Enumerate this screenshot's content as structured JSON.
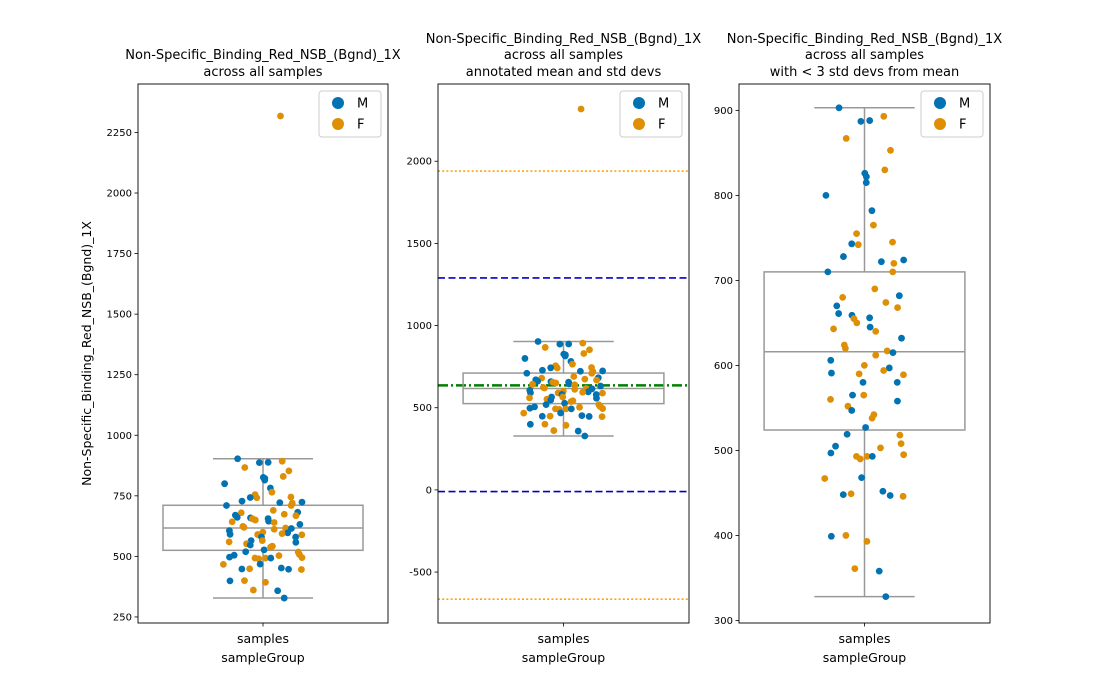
{
  "colors": {
    "M": "#0173b2",
    "F": "#de8f05",
    "box": "#999999",
    "mean_line": "#008000",
    "std1_line": "#0000cd",
    "std3_line": "#ffa500"
  },
  "chart_data": [
    {
      "type": "box",
      "title": [
        "Non-Specific_Binding_Red_NSB_(Bgnd)_1X",
        "across all samples"
      ],
      "xlabel": "sampleGroup",
      "ylabel": "Non-Specific_Binding_Red_NSB_(Bgnd)_1X",
      "categories": [
        "samples"
      ],
      "ylim": [
        225,
        2450
      ],
      "yticks": [
        250,
        500,
        750,
        1000,
        1250,
        1500,
        1750,
        2000,
        2250
      ],
      "box": {
        "min": 328,
        "q1": 525,
        "median": 617,
        "q3": 711,
        "max": 903
      },
      "outliers": [
        {
          "value": 2318,
          "group": "F"
        }
      ],
      "legend": {
        "position": "top-right",
        "entries": [
          "M",
          "F"
        ]
      },
      "hlines": []
    },
    {
      "type": "box",
      "title": [
        "Non-Specific_Binding_Red_NSB_(Bgnd)_1X",
        "across all samples",
        "annotated mean and std devs"
      ],
      "xlabel": "sampleGroup",
      "ylabel": "",
      "categories": [
        "samples"
      ],
      "ylim": [
        -810,
        2470
      ],
      "yticks": [
        -500,
        0,
        500,
        1000,
        1500,
        2000
      ],
      "box": {
        "min": 328,
        "q1": 525,
        "median": 617,
        "q3": 711,
        "max": 903
      },
      "outliers": [
        {
          "value": 2318,
          "group": "F"
        }
      ],
      "legend": {
        "position": "top-right",
        "entries": [
          "M",
          "F"
        ]
      },
      "hlines": [
        {
          "value": 1940,
          "style": "dotted",
          "color_key": "std3_line"
        },
        {
          "value": 1290,
          "style": "dashed",
          "color_key": "std1_line"
        },
        {
          "value": 636,
          "style": "dashdot",
          "color_key": "mean_line"
        },
        {
          "value": -10,
          "style": "dashed",
          "color_key": "std1_line"
        },
        {
          "value": -665,
          "style": "dotted",
          "color_key": "std3_line"
        }
      ]
    },
    {
      "type": "box",
      "title": [
        "Non-Specific_Binding_Red_NSB_(Bgnd)_1X",
        "across all samples",
        "with < 3 std devs from mean"
      ],
      "xlabel": "sampleGroup",
      "ylabel": "",
      "categories": [
        "samples"
      ],
      "ylim": [
        297,
        931
      ],
      "yticks": [
        300,
        400,
        500,
        600,
        700,
        800,
        900
      ],
      "box": {
        "min": 328,
        "q1": 524,
        "median": 616,
        "q3": 710,
        "max": 903
      },
      "outliers": [],
      "legend": {
        "position": "top-right",
        "entries": [
          "M",
          "F"
        ]
      },
      "hlines": []
    }
  ],
  "strip_points": [
    {
      "value": 903,
      "group": "M"
    },
    {
      "value": 893,
      "group": "F"
    },
    {
      "value": 888,
      "group": "M"
    },
    {
      "value": 887,
      "group": "M"
    },
    {
      "value": 867,
      "group": "F"
    },
    {
      "value": 853,
      "group": "F"
    },
    {
      "value": 830,
      "group": "F"
    },
    {
      "value": 826,
      "group": "M"
    },
    {
      "value": 822,
      "group": "M"
    },
    {
      "value": 815,
      "group": "M"
    },
    {
      "value": 800,
      "group": "M"
    },
    {
      "value": 782,
      "group": "M"
    },
    {
      "value": 765,
      "group": "F"
    },
    {
      "value": 755,
      "group": "F"
    },
    {
      "value": 745,
      "group": "F"
    },
    {
      "value": 743,
      "group": "M"
    },
    {
      "value": 742,
      "group": "F"
    },
    {
      "value": 728,
      "group": "M"
    },
    {
      "value": 724,
      "group": "M"
    },
    {
      "value": 722,
      "group": "M"
    },
    {
      "value": 720,
      "group": "F"
    },
    {
      "value": 710,
      "group": "F"
    },
    {
      "value": 710,
      "group": "M"
    },
    {
      "value": 690,
      "group": "F"
    },
    {
      "value": 682,
      "group": "M"
    },
    {
      "value": 680,
      "group": "F"
    },
    {
      "value": 674,
      "group": "F"
    },
    {
      "value": 670,
      "group": "M"
    },
    {
      "value": 668,
      "group": "F"
    },
    {
      "value": 661,
      "group": "M"
    },
    {
      "value": 659,
      "group": "M"
    },
    {
      "value": 656,
      "group": "M"
    },
    {
      "value": 655,
      "group": "F"
    },
    {
      "value": 650,
      "group": "F"
    },
    {
      "value": 645,
      "group": "M"
    },
    {
      "value": 643,
      "group": "F"
    },
    {
      "value": 640,
      "group": "F"
    },
    {
      "value": 632,
      "group": "M"
    },
    {
      "value": 624,
      "group": "F"
    },
    {
      "value": 620,
      "group": "F"
    },
    {
      "value": 617,
      "group": "F"
    },
    {
      "value": 615,
      "group": "M"
    },
    {
      "value": 612,
      "group": "F"
    },
    {
      "value": 606,
      "group": "M"
    },
    {
      "value": 600,
      "group": "F"
    },
    {
      "value": 597,
      "group": "M"
    },
    {
      "value": 594,
      "group": "F"
    },
    {
      "value": 591,
      "group": "M"
    },
    {
      "value": 590,
      "group": "F"
    },
    {
      "value": 589,
      "group": "F"
    },
    {
      "value": 580,
      "group": "M"
    },
    {
      "value": 580,
      "group": "M"
    },
    {
      "value": 565,
      "group": "M"
    },
    {
      "value": 565,
      "group": "F"
    },
    {
      "value": 560,
      "group": "F"
    },
    {
      "value": 558,
      "group": "M"
    },
    {
      "value": 552,
      "group": "F"
    },
    {
      "value": 547,
      "group": "M"
    },
    {
      "value": 542,
      "group": "F"
    },
    {
      "value": 538,
      "group": "F"
    },
    {
      "value": 527,
      "group": "M"
    },
    {
      "value": 519,
      "group": "M"
    },
    {
      "value": 518,
      "group": "F"
    },
    {
      "value": 508,
      "group": "F"
    },
    {
      "value": 505,
      "group": "M"
    },
    {
      "value": 503,
      "group": "F"
    },
    {
      "value": 497,
      "group": "M"
    },
    {
      "value": 495,
      "group": "F"
    },
    {
      "value": 493,
      "group": "F"
    },
    {
      "value": 493,
      "group": "F"
    },
    {
      "value": 493,
      "group": "M"
    },
    {
      "value": 490,
      "group": "F"
    },
    {
      "value": 468,
      "group": "M"
    },
    {
      "value": 467,
      "group": "F"
    },
    {
      "value": 452,
      "group": "M"
    },
    {
      "value": 449,
      "group": "F"
    },
    {
      "value": 448,
      "group": "M"
    },
    {
      "value": 447,
      "group": "M"
    },
    {
      "value": 446,
      "group": "F"
    },
    {
      "value": 400,
      "group": "F"
    },
    {
      "value": 399,
      "group": "M"
    },
    {
      "value": 393,
      "group": "F"
    },
    {
      "value": 361,
      "group": "F"
    },
    {
      "value": 358,
      "group": "M"
    },
    {
      "value": 328,
      "group": "M"
    }
  ]
}
